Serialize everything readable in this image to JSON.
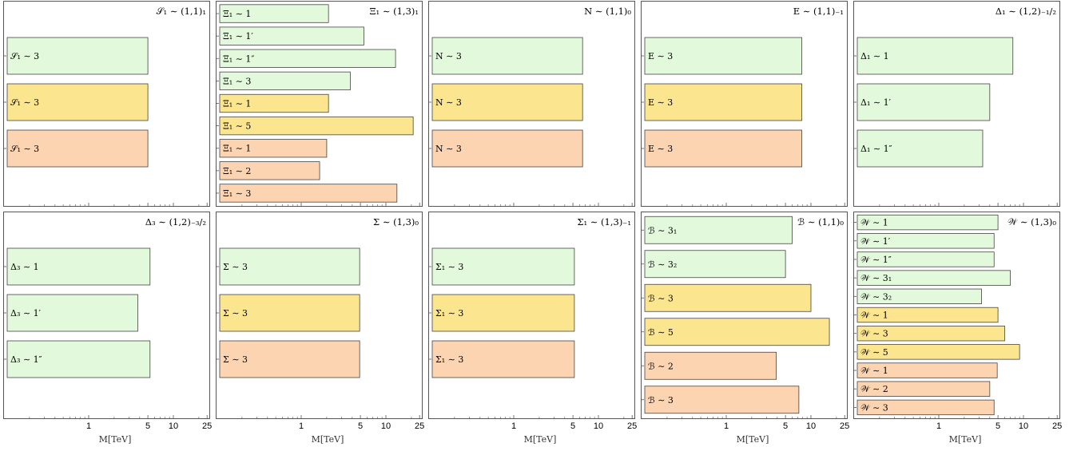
{
  "colors": {
    "green": "#e3f9dc",
    "yellow": "#fce58f",
    "orange": "#fdd4b1",
    "bar_stroke": "#444444",
    "frame": "#555555"
  },
  "chart_data": [
    {
      "type": "bar",
      "orientation": "horizontal",
      "xscale": "log",
      "xlim": [
        0.1,
        30
      ],
      "xticks": [
        "1",
        "5",
        "10",
        "25"
      ],
      "xlabel": "M[TeV]",
      "title": "𝒮₁ ∼ (1,1)₁",
      "bars": [
        {
          "label": "𝒮₁ ∼ 3",
          "value": 5,
          "color": "green"
        },
        {
          "label": "𝒮₁ ∼ 3",
          "value": 5,
          "color": "yellow"
        },
        {
          "label": "𝒮₁ ∼ 3",
          "value": 5,
          "color": "orange"
        }
      ]
    },
    {
      "type": "bar",
      "orientation": "horizontal",
      "xscale": "log",
      "xlim": [
        0.1,
        30
      ],
      "xticks": [
        "1",
        "5",
        "10",
        "25"
      ],
      "xlabel": "M[TeV]",
      "title": "Ξ₁ ∼ (1,3)₁",
      "bars": [
        {
          "label": "Ξ₁ ∼ 1",
          "value": 2.1,
          "color": "green"
        },
        {
          "label": "Ξ₁ ∼ 1′",
          "value": 5.5,
          "color": "green"
        },
        {
          "label": "Ξ₁ ∼ 1″",
          "value": 13,
          "color": "green"
        },
        {
          "label": "Ξ₁ ∼ 3",
          "value": 3.8,
          "color": "green"
        },
        {
          "label": "Ξ₁ ∼ 1",
          "value": 2.1,
          "color": "yellow"
        },
        {
          "label": "Ξ₁ ∼ 5",
          "value": 21,
          "color": "yellow"
        },
        {
          "label": "Ξ₁ ∼ 1",
          "value": 2.0,
          "color": "orange"
        },
        {
          "label": "Ξ₁ ∼ 2",
          "value": 1.65,
          "color": "orange"
        },
        {
          "label": "Ξ₁ ∼ 3",
          "value": 13.5,
          "color": "orange"
        }
      ]
    },
    {
      "type": "bar",
      "orientation": "horizontal",
      "xscale": "log",
      "xlim": [
        0.1,
        30
      ],
      "xticks": [
        "1",
        "5",
        "10",
        "25"
      ],
      "xlabel": "M[TeV]",
      "title": "N ∼ (1,1)₀",
      "bars": [
        {
          "label": "N ∼ 3",
          "value": 6.5,
          "color": "green"
        },
        {
          "label": "N ∼ 3",
          "value": 6.5,
          "color": "yellow"
        },
        {
          "label": "N ∼ 3",
          "value": 6.5,
          "color": "orange"
        }
      ]
    },
    {
      "type": "bar",
      "orientation": "horizontal",
      "xscale": "log",
      "xlim": [
        0.1,
        30
      ],
      "xticks": [
        "1",
        "5",
        "10",
        "25"
      ],
      "xlabel": "M[TeV]",
      "title": "E ∼ (1,1)₋₁",
      "bars": [
        {
          "label": "E ∼ 3",
          "value": 7.8,
          "color": "green"
        },
        {
          "label": "E ∼ 3",
          "value": 7.8,
          "color": "yellow"
        },
        {
          "label": "E ∼ 3",
          "value": 7.8,
          "color": "orange"
        }
      ]
    },
    {
      "type": "bar",
      "orientation": "horizontal",
      "xscale": "log",
      "xlim": [
        0.1,
        30
      ],
      "xticks": [
        "1",
        "5",
        "10",
        "25"
      ],
      "xlabel": "M[TeV]",
      "title": "Δ₁ ∼ (1,2)₋₁/₂",
      "bars": [
        {
          "label": "Δ₁ ∼ 1",
          "value": 7.5,
          "color": "green"
        },
        {
          "label": "Δ₁ ∼ 1′",
          "value": 4.0,
          "color": "green"
        },
        {
          "label": "Δ₁ ∼ 1″",
          "value": 3.3,
          "color": "green"
        }
      ]
    },
    {
      "type": "bar",
      "orientation": "horizontal",
      "xscale": "log",
      "xlim": [
        0.1,
        30
      ],
      "xticks": [
        "1",
        "5",
        "10",
        "25"
      ],
      "xlabel": "M[TeV]",
      "title": "Δ₃ ∼ (1,2)₋₃/₂",
      "bars": [
        {
          "label": "Δ₃ ∼ 1",
          "value": 5.3,
          "color": "green"
        },
        {
          "label": "Δ₃ ∼ 1′",
          "value": 3.8,
          "color": "green"
        },
        {
          "label": "Δ₃ ∼ 1″",
          "value": 5.3,
          "color": "green"
        }
      ]
    },
    {
      "type": "bar",
      "orientation": "horizontal",
      "xscale": "log",
      "xlim": [
        0.1,
        30
      ],
      "xticks": [
        "1",
        "5",
        "10",
        "25"
      ],
      "xlabel": "M[TeV]",
      "title": "Σ ∼ (1,3)₀",
      "bars": [
        {
          "label": "Σ ∼ 3",
          "value": 4.9,
          "color": "green"
        },
        {
          "label": "Σ ∼ 3",
          "value": 4.9,
          "color": "yellow"
        },
        {
          "label": "Σ ∼ 3",
          "value": 4.9,
          "color": "orange"
        }
      ]
    },
    {
      "type": "bar",
      "orientation": "horizontal",
      "xscale": "log",
      "xlim": [
        0.1,
        30
      ],
      "xticks": [
        "1",
        "5",
        "10",
        "25"
      ],
      "xlabel": "M[TeV]",
      "title": "Σ₁ ∼ (1,3)₋₁",
      "bars": [
        {
          "label": "Σ₁ ∼ 3",
          "value": 5.2,
          "color": "green"
        },
        {
          "label": "Σ₁ ∼ 3",
          "value": 5.2,
          "color": "yellow"
        },
        {
          "label": "Σ₁ ∼ 3",
          "value": 5.2,
          "color": "orange"
        }
      ]
    },
    {
      "type": "bar",
      "orientation": "horizontal",
      "xscale": "log",
      "xlim": [
        0.1,
        30
      ],
      "xticks": [
        "1",
        "5",
        "10",
        "25"
      ],
      "xlabel": "M[TeV]",
      "title": "ℬ ∼ (1,1)₀",
      "bars": [
        {
          "label": "ℬ ∼ 3₁",
          "value": 6.0,
          "color": "green"
        },
        {
          "label": "ℬ ∼ 3₂",
          "value": 5.0,
          "color": "green"
        },
        {
          "label": "ℬ ∼ 3",
          "value": 10,
          "color": "yellow"
        },
        {
          "label": "ℬ ∼ 5",
          "value": 16.5,
          "color": "yellow"
        },
        {
          "label": "ℬ ∼ 2",
          "value": 3.9,
          "color": "orange"
        },
        {
          "label": "ℬ ∼ 3",
          "value": 7.2,
          "color": "orange"
        }
      ]
    },
    {
      "type": "bar",
      "orientation": "horizontal",
      "xscale": "log",
      "xlim": [
        0.1,
        30
      ],
      "xticks": [
        "1",
        "5",
        "10",
        "25"
      ],
      "xlabel": "M[TeV]",
      "title": "𝒲 ∼ (1,3)₀",
      "bars": [
        {
          "label": "𝒲 ∼ 1",
          "value": 5.0,
          "color": "green"
        },
        {
          "label": "𝒲 ∼ 1′",
          "value": 4.5,
          "color": "green"
        },
        {
          "label": "𝒲 ∼ 1″",
          "value": 4.5,
          "color": "green"
        },
        {
          "label": "𝒲 ∼ 3₁",
          "value": 7.0,
          "color": "green"
        },
        {
          "label": "𝒲 ∼ 3₂",
          "value": 3.2,
          "color": "green"
        },
        {
          "label": "𝒲 ∼ 1",
          "value": 5.0,
          "color": "yellow"
        },
        {
          "label": "𝒲 ∼ 3",
          "value": 6.0,
          "color": "yellow"
        },
        {
          "label": "𝒲 ∼ 5",
          "value": 9.0,
          "color": "yellow"
        },
        {
          "label": "𝒲 ∼ 1",
          "value": 4.9,
          "color": "orange"
        },
        {
          "label": "𝒲 ∼ 2",
          "value": 4.0,
          "color": "orange"
        },
        {
          "label": "𝒲 ∼ 3",
          "value": 4.5,
          "color": "orange"
        }
      ]
    }
  ]
}
